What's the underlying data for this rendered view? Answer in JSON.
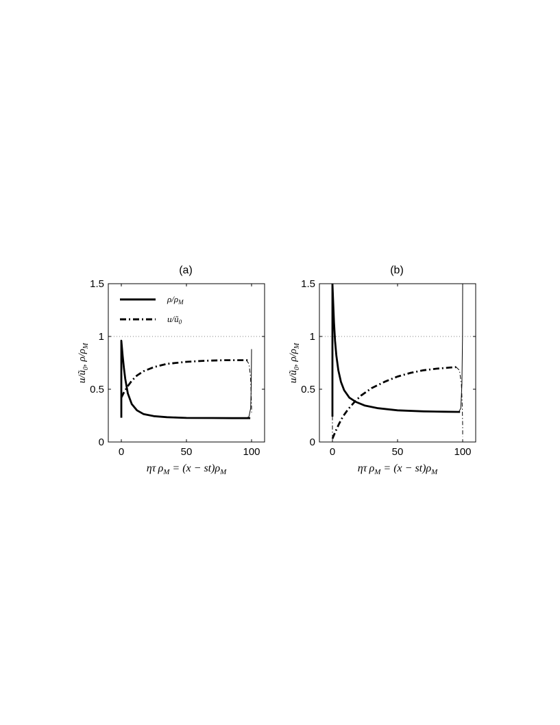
{
  "chart_data": [
    {
      "type": "line",
      "title": "(a)",
      "xlabel": "ητ ρ_M = (x − st)ρ_M",
      "ylabel": "u/ũ₀,  ρ/ρ_M",
      "xlim": [
        -10,
        110
      ],
      "ylim": [
        0,
        1.5
      ],
      "xticks": [
        "0",
        "50",
        "100"
      ],
      "yticks": [
        "0",
        "0.5",
        "1",
        "1.5"
      ],
      "grid": false,
      "legend_position": "top-left",
      "reference_line": {
        "y": 1,
        "style": "dotted"
      },
      "series": [
        {
          "name": "ρ/ρ_M",
          "style": "solid-thick",
          "x": [
            0,
            0,
            1,
            2,
            3,
            5,
            8,
            12,
            17,
            25,
            35,
            50,
            70,
            85,
            99
          ],
          "y": [
            0.23,
            0.96,
            0.82,
            0.7,
            0.6,
            0.46,
            0.36,
            0.3,
            0.265,
            0.245,
            0.235,
            0.228,
            0.227,
            0.226,
            0.226
          ]
        },
        {
          "name": "u/ũ₀",
          "style": "dashdot-thick",
          "x": [
            0,
            2,
            5,
            8,
            12,
            17,
            25,
            35,
            50,
            65,
            80,
            99
          ],
          "y": [
            0.42,
            0.47,
            0.53,
            0.58,
            0.63,
            0.67,
            0.71,
            0.74,
            0.76,
            0.77,
            0.775,
            0.775
          ]
        },
        {
          "name": "",
          "style": "solid-thin",
          "x": [
            96,
            98,
            99.3,
            99.8,
            100
          ],
          "y": [
            0.226,
            0.24,
            0.32,
            0.55,
            0.88
          ]
        },
        {
          "name": "",
          "style": "dashdot-thin",
          "x": [
            96,
            98,
            99.2,
            99.7,
            100,
            100
          ],
          "y": [
            0.775,
            0.74,
            0.62,
            0.45,
            0.33,
            0.28
          ]
        }
      ]
    },
    {
      "type": "line",
      "title": "(b)",
      "xlabel": "ητ ρ_M = (x − st)ρ_M",
      "ylabel": "u/ũ₀,  ρ/ρ_M",
      "xlim": [
        -10,
        110
      ],
      "ylim": [
        0,
        1.5
      ],
      "xticks": [
        "0",
        "50",
        "100"
      ],
      "yticks": [
        "0",
        "0.5",
        "1",
        "1.5"
      ],
      "grid": false,
      "reference_line": {
        "y": 1,
        "style": "dotted"
      },
      "series": [
        {
          "name": "ρ/ρ_M",
          "style": "solid-thick",
          "x": [
            0,
            0,
            0.6,
            1.2,
            2,
            3,
            4.5,
            6.5,
            9,
            13,
            18,
            25,
            35,
            50,
            70,
            85,
            98
          ],
          "y": [
            0.24,
            1.5,
            1.32,
            1.13,
            0.96,
            0.82,
            0.68,
            0.57,
            0.49,
            0.42,
            0.38,
            0.345,
            0.32,
            0.3,
            0.29,
            0.287,
            0.285
          ]
        },
        {
          "name": "u/ũ₀",
          "style": "dashdot-thick",
          "x": [
            0,
            2,
            5,
            8,
            12,
            17,
            22,
            30,
            40,
            50,
            60,
            70,
            80,
            90,
            95
          ],
          "y": [
            0.03,
            0.09,
            0.17,
            0.24,
            0.31,
            0.38,
            0.44,
            0.51,
            0.57,
            0.62,
            0.655,
            0.68,
            0.695,
            0.705,
            0.71
          ]
        },
        {
          "name": "",
          "style": "dashdot-thin",
          "x": [
            0,
            0,
            0,
            0,
            0
          ],
          "y": [
            0.03,
            0.1,
            0.12,
            0.2,
            0.24
          ]
        },
        {
          "name": "",
          "style": "solid-thin",
          "x": [
            97,
            98.6,
            99.4,
            99.9,
            100
          ],
          "y": [
            0.285,
            0.32,
            0.55,
            1.0,
            1.5
          ]
        },
        {
          "name": "",
          "style": "dashdot-thin",
          "x": [
            95,
            97.5,
            99,
            99.7,
            100,
            100
          ],
          "y": [
            0.71,
            0.68,
            0.55,
            0.35,
            0.15,
            0.05
          ]
        }
      ]
    }
  ],
  "legend": {
    "rho_label": "ρ/ρ_M",
    "u_label": "u/ũ₀"
  }
}
